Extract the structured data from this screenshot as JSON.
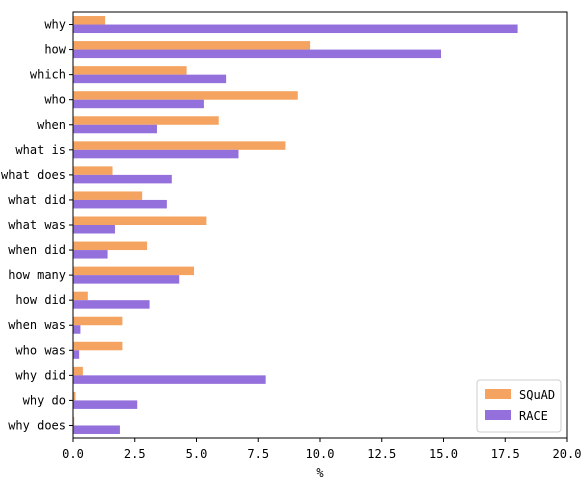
{
  "chart_data": {
    "type": "bar",
    "orientation": "horizontal",
    "categories": [
      "why",
      "how",
      "which",
      "who",
      "when",
      "what is",
      "what does",
      "what did",
      "what was",
      "when did",
      "how many",
      "how did",
      "when was",
      "who was",
      "why did",
      "why do",
      "why does"
    ],
    "series": [
      {
        "name": "SQuAD",
        "color": "#f4a460",
        "values": [
          1.3,
          9.6,
          4.6,
          9.1,
          5.9,
          8.6,
          1.6,
          2.8,
          5.4,
          3.0,
          4.9,
          0.6,
          2.0,
          2.0,
          0.4,
          0.1,
          0.05
        ]
      },
      {
        "name": "RACE",
        "color": "#9370db",
        "values": [
          18.0,
          14.9,
          6.2,
          5.3,
          3.4,
          6.7,
          4.0,
          3.8,
          1.7,
          1.4,
          4.3,
          3.1,
          0.3,
          0.25,
          7.8,
          2.6,
          1.9
        ]
      }
    ],
    "xlabel": "%",
    "ylabel": "",
    "xlim": [
      0,
      20
    ],
    "xticks": [
      "0.0",
      "2.5",
      "5.0",
      "7.5",
      "10.0",
      "12.5",
      "15.0",
      "17.5",
      "20.0"
    ],
    "xtick_values": [
      0,
      2.5,
      5,
      7.5,
      10,
      12.5,
      15,
      17.5,
      20
    ],
    "legend_position": "lower-right",
    "grid": false
  }
}
